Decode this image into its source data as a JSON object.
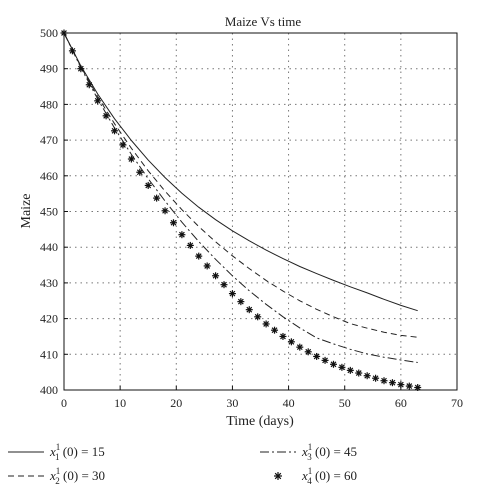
{
  "chart_data": {
    "type": "line",
    "title": "Maize Vs time",
    "xlabel": "Time (days)",
    "ylabel": "Maize",
    "xlim": [
      0,
      70
    ],
    "ylim": [
      400,
      500
    ],
    "xticks": [
      0,
      10,
      20,
      30,
      40,
      50,
      60,
      70
    ],
    "yticks": [
      400,
      410,
      420,
      430,
      440,
      450,
      460,
      470,
      480,
      490,
      500
    ],
    "grid": true,
    "legend_position": "bottom",
    "x": [
      0,
      3,
      6,
      9,
      12,
      15,
      18,
      21,
      24,
      27,
      30,
      33,
      36,
      39,
      42,
      45,
      48,
      51,
      54,
      57,
      60,
      63
    ],
    "series": [
      {
        "name": "x_1^1 (0) = 15",
        "legend": {
          "var": "x",
          "sub": "1",
          "sup": "1",
          "rest": " (0) = 15"
        },
        "style": "solid",
        "color": "#222222",
        "values": [
          500,
          490.8,
          482.9,
          476.0,
          469.9,
          464.4,
          459.5,
          455.1,
          451.2,
          447.7,
          444.6,
          441.8,
          439.2,
          436.8,
          434.6,
          432.6,
          430.7,
          428.9,
          427.2,
          425.4,
          423.7,
          422.2
        ]
      },
      {
        "name": "x_2^1 (0) = 30",
        "legend": {
          "var": "x",
          "sub": "2",
          "sup": "1",
          "rest": " (0) = 30"
        },
        "style": "dashed",
        "color": "#222222",
        "values": [
          500,
          490.6,
          482.2,
          474.6,
          467.7,
          461.4,
          455.7,
          450.5,
          445.8,
          441.5,
          437.6,
          434.0,
          430.7,
          427.7,
          425.0,
          422.6,
          420.5,
          418.6,
          417.3,
          416.2,
          415.3,
          414.8
        ]
      },
      {
        "name": "x_3^1 (0) = 45",
        "legend": {
          "var": "x",
          "sub": "3",
          "sup": "1",
          "rest": " (0) = 45"
        },
        "style": "dashdot",
        "color": "#222222",
        "values": [
          500,
          490.3,
          481.5,
          473.4,
          466.0,
          459.2,
          452.9,
          447.0,
          441.6,
          436.6,
          432.0,
          427.8,
          424.0,
          420.5,
          417.4,
          414.6,
          412.9,
          411.4,
          410.1,
          409.2,
          408.4,
          407.7
        ]
      },
      {
        "name": "x_4^1 (0) = 60",
        "legend": {
          "var": "x",
          "sub": "4",
          "sup": "1",
          "rest": " (0) = 60"
        },
        "style": "markers",
        "marker": "*",
        "color": "#222222",
        "values": [
          500,
          490.0,
          481.0,
          472.6,
          464.7,
          457.3,
          450.2,
          443.5,
          437.5,
          432.0,
          427.0,
          422.5,
          418.5,
          415.0,
          412.0,
          409.4,
          407.2,
          405.5,
          404.0,
          402.6,
          401.5,
          400.7
        ]
      }
    ]
  }
}
